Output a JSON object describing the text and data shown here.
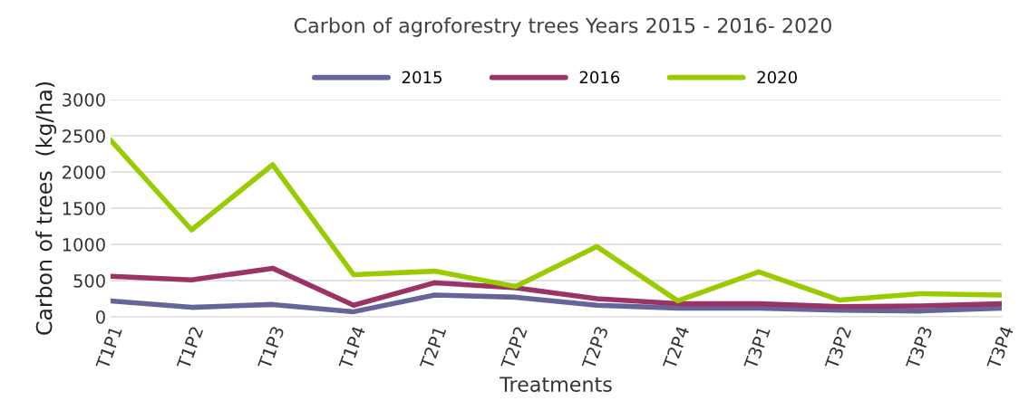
{
  "chart_data": {
    "type": "line",
    "title": "Carbon of agroforestry trees Years 2015 - 2016- 2020",
    "xlabel": "Treatments",
    "ylabel": "Carbon of trees  (kg/ha)",
    "categories": [
      "T1P1",
      "T1P2",
      "T1P3",
      "T1P4",
      "T2P1",
      "T2P2",
      "T2P3",
      "T2P4",
      "T3P1",
      "T3P2",
      "T3P3",
      "T3P4"
    ],
    "series": [
      {
        "name": "2015",
        "color": "#65659a",
        "values": [
          220,
          130,
          170,
          70,
          300,
          270,
          160,
          120,
          120,
          90,
          80,
          120
        ]
      },
      {
        "name": "2016",
        "color": "#9b3366",
        "values": [
          560,
          510,
          670,
          160,
          470,
          400,
          250,
          180,
          180,
          140,
          150,
          180
        ]
      },
      {
        "name": "2020",
        "color": "#99cc00",
        "values": [
          2440,
          1200,
          2100,
          580,
          630,
          420,
          970,
          220,
          620,
          230,
          320,
          300
        ]
      }
    ],
    "ylim": [
      0,
      3000
    ],
    "yticks": [
      0,
      500,
      1000,
      1500,
      2000,
      2500,
      3000
    ],
    "grid": "y",
    "legend": "top",
    "marker": "none",
    "line_style": "solid"
  }
}
